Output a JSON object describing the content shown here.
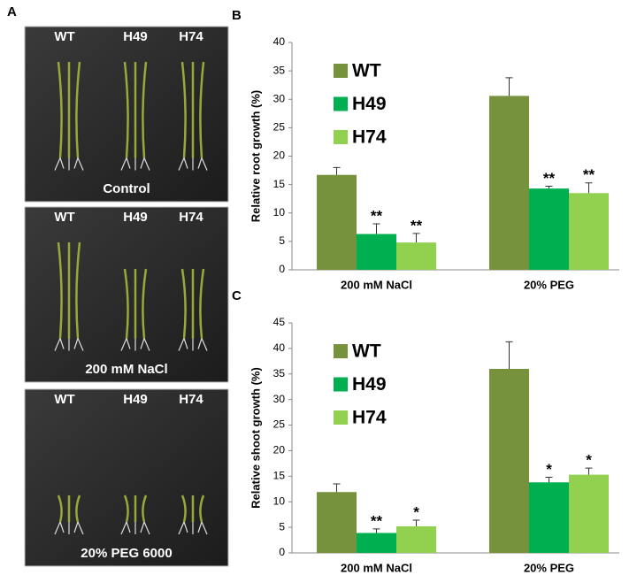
{
  "panel_a": {
    "label": "A",
    "photos": [
      {
        "genotypes": [
          "WT",
          "H49",
          "H74"
        ],
        "condition": "Control"
      },
      {
        "genotypes": [
          "WT",
          "H49",
          "H74"
        ],
        "condition": "200 mM NaCl"
      },
      {
        "genotypes": [
          "WT",
          "H49",
          "H74"
        ],
        "condition": "20% PEG 6000"
      }
    ]
  },
  "chart_data": [
    {
      "type": "bar",
      "panel_label": "B",
      "y_label": "Relative root growth (%)",
      "categories": [
        "200 mM NaCl",
        "20% PEG"
      ],
      "ylim": [
        0,
        40
      ],
      "yticks": [
        0,
        5,
        10,
        15,
        20,
        25,
        30,
        35,
        40
      ],
      "series": [
        {
          "name": "WT",
          "color": "#77923c",
          "values": [
            16.7,
            30.6
          ],
          "errors": [
            1.3,
            3.2
          ]
        },
        {
          "name": "H49",
          "color": "#00b050",
          "values": [
            6.3,
            14.3
          ],
          "errors": [
            1.8,
            0.4
          ],
          "annotations": [
            "**",
            "**"
          ]
        },
        {
          "name": "H74",
          "color": "#92d050",
          "values": [
            4.8,
            13.5
          ],
          "errors": [
            1.6,
            1.8
          ],
          "annotations": [
            "**",
            "**"
          ]
        }
      ]
    },
    {
      "type": "bar",
      "panel_label": "C",
      "y_label": "Relative shoot growth (%)",
      "categories": [
        "200 mM NaCl",
        "20% PEG"
      ],
      "ylim": [
        0,
        45
      ],
      "yticks": [
        0,
        5,
        10,
        15,
        20,
        25,
        30,
        35,
        40,
        45
      ],
      "series": [
        {
          "name": "WT",
          "color": "#77923c",
          "values": [
            11.9,
            36.0
          ],
          "errors": [
            1.6,
            5.3
          ]
        },
        {
          "name": "H49",
          "color": "#00b050",
          "values": [
            3.9,
            13.8
          ],
          "errors": [
            0.8,
            1.0
          ],
          "annotations": [
            "**",
            "*"
          ]
        },
        {
          "name": "H74",
          "color": "#92d050",
          "values": [
            5.2,
            15.3
          ],
          "errors": [
            1.2,
            1.3
          ],
          "annotations": [
            "*",
            "*"
          ]
        }
      ]
    }
  ]
}
